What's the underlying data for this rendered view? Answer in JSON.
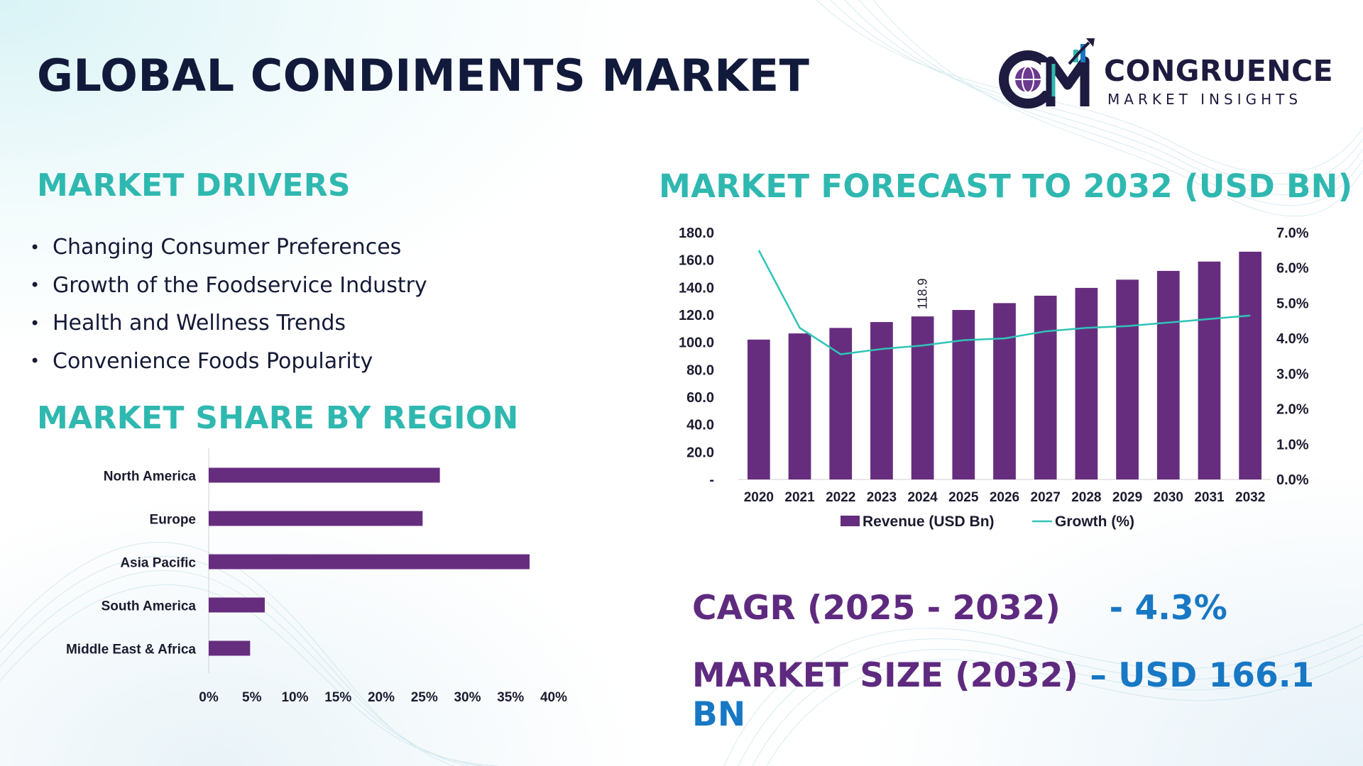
{
  "title": "GLOBAL CONDIMENTS MARKET",
  "logo": {
    "name": "CONGRUENCE",
    "subtitle": "MARKET INSIGHTS",
    "mark_text": "CM"
  },
  "drivers": {
    "heading": "MARKET DRIVERS",
    "items": [
      "Changing Consumer Preferences",
      "Growth of the Foodservice Industry",
      "Health and Wellness Trends",
      "Convenience Foods Popularity"
    ]
  },
  "region": {
    "heading": "MARKET SHARE BY REGION"
  },
  "forecast": {
    "heading": "MARKET FORECAST TO 2032 (USD BN)"
  },
  "kpis": {
    "cagr_label": "CAGR (2025 - 2032)",
    "cagr_value": "- 4.3%",
    "size_label": "MARKET SIZE (2032)",
    "size_value": "– USD 166.1 BN"
  },
  "colors": {
    "bar": "#662d7f",
    "line": "#2ec4b6",
    "heading": "#2fb8b0",
    "kpi_label": "#5e2a7f",
    "kpi_value": "#1878c4"
  },
  "chart_data": [
    {
      "type": "bar",
      "orientation": "horizontal",
      "categories": [
        "North America",
        "Europe",
        "Asia Pacific",
        "South America",
        "Middle East & Africa"
      ],
      "values": [
        26.8,
        24.8,
        37.2,
        6.5,
        4.8
      ],
      "xlim": [
        0,
        40
      ],
      "x_ticks": [
        "0%",
        "5%",
        "10%",
        "15%",
        "20%",
        "25%",
        "30%",
        "35%",
        "40%"
      ],
      "grid": false
    },
    {
      "type": "bar",
      "categories": [
        "2020",
        "2021",
        "2022",
        "2023",
        "2024",
        "2025",
        "2026",
        "2027",
        "2028",
        "2029",
        "2030",
        "2031",
        "2032"
      ],
      "series": [
        {
          "name": "Revenue (USD Bn)",
          "kind": "bar",
          "axis": "left",
          "values": [
            102.0,
            106.5,
            110.5,
            114.8,
            118.9,
            123.6,
            128.6,
            134.0,
            139.7,
            145.7,
            152.1,
            158.9,
            166.1
          ]
        },
        {
          "name": "Growth (%)",
          "kind": "line",
          "axis": "right",
          "values": [
            6.5,
            4.3,
            3.55,
            3.7,
            3.8,
            3.95,
            4.0,
            4.2,
            4.3,
            4.35,
            4.45,
            4.55,
            4.65
          ]
        }
      ],
      "data_labels": [
        {
          "category": "2024",
          "text": "118.9"
        }
      ],
      "y_left_ticks": [
        "-",
        "20.0",
        "40.0",
        "60.0",
        "80.0",
        "100.0",
        "120.0",
        "140.0",
        "160.0",
        "180.0"
      ],
      "y_left_lim": [
        0,
        180
      ],
      "y_right_ticks": [
        "0.0%",
        "1.0%",
        "2.0%",
        "3.0%",
        "4.0%",
        "5.0%",
        "6.0%",
        "7.0%"
      ],
      "y_right_lim": [
        0,
        7
      ],
      "legend": "bottom",
      "grid": false
    }
  ]
}
